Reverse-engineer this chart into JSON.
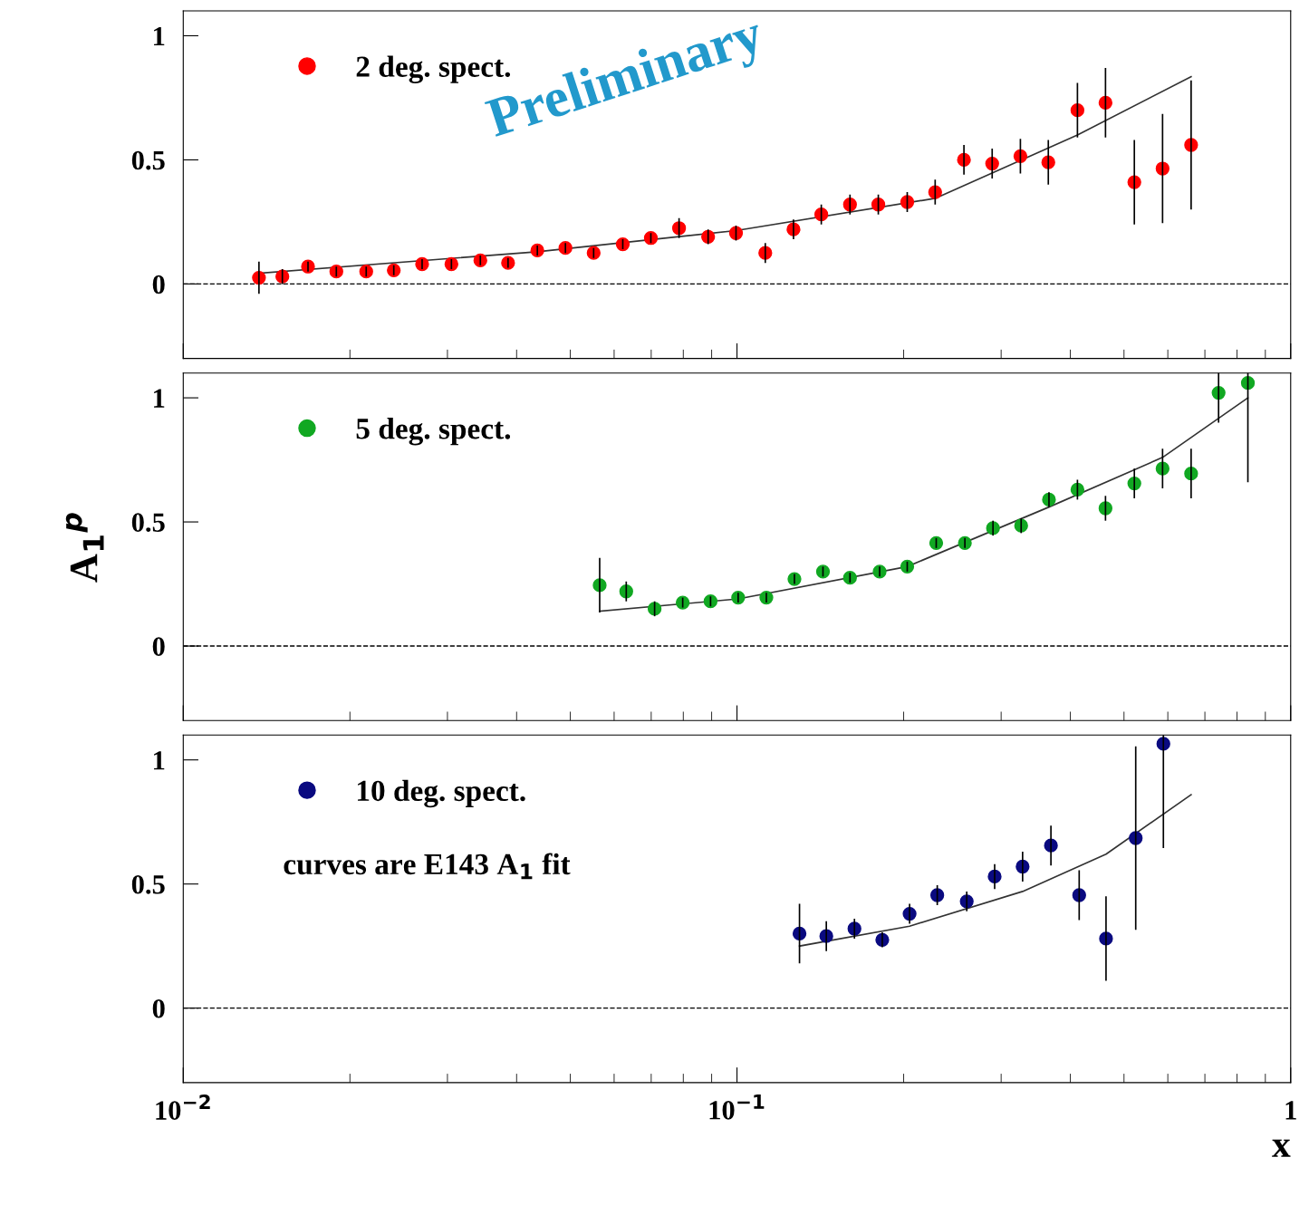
{
  "chart_data": [
    {
      "type": "scatter",
      "annotations": [
        "Preliminary"
      ],
      "legend": "top left",
      "marker": "circle",
      "tick_labels": "y",
      "grid": false,
      "log": "x",
      "xlim": [
        0.01,
        1
      ],
      "ylim": [
        -0.3,
        1.1
      ],
      "yticks": [
        0,
        0.5,
        1
      ],
      "ref_lines": [
        {
          "axis": "y",
          "value": 0,
          "line_style": "dashed",
          "color": "#000000"
        }
      ],
      "x": [
        0.0137,
        0.0151,
        0.0168,
        0.0189,
        0.0214,
        0.024,
        0.027,
        0.0305,
        0.0344,
        0.0386,
        0.0436,
        0.049,
        0.0551,
        0.0622,
        0.0699,
        0.0786,
        0.0887,
        0.0996,
        0.1125,
        0.1265,
        0.142,
        0.16,
        0.18,
        0.203,
        0.228,
        0.257,
        0.289,
        0.325,
        0.365,
        0.412,
        0.463,
        0.522,
        0.587,
        0.661
      ],
      "series": [
        {
          "name": "2 deg. spect.",
          "color": "#ff0000",
          "values": [
            0.025,
            0.03,
            0.07,
            0.05,
            0.05,
            0.055,
            0.08,
            0.08,
            0.095,
            0.085,
            0.135,
            0.145,
            0.125,
            0.16,
            0.185,
            0.225,
            0.19,
            0.205,
            0.125,
            0.22,
            0.28,
            0.32,
            0.32,
            0.33,
            0.37,
            0.5,
            0.485,
            0.515,
            0.49,
            0.7,
            0.73,
            0.41,
            0.465,
            0.56
          ],
          "errors": [
            0.065,
            0.03,
            0.02,
            0.02,
            0.02,
            0.02,
            0.02,
            0.02,
            0.02,
            0.02,
            0.02,
            0.02,
            0.02,
            0.02,
            0.02,
            0.04,
            0.03,
            0.03,
            0.04,
            0.04,
            0.04,
            0.04,
            0.04,
            0.04,
            0.05,
            0.06,
            0.06,
            0.07,
            0.09,
            0.11,
            0.14,
            0.17,
            0.22,
            0.26
          ]
        },
        {
          "type": "line",
          "marker": "none",
          "color": "#333333",
          "x": [
            0.0137,
            0.0436,
            0.0996,
            0.228,
            0.412,
            0.661
          ],
          "values": [
            0.043,
            0.13,
            0.215,
            0.345,
            0.6,
            0.835
          ]
        }
      ]
    },
    {
      "type": "scatter",
      "ylabel": "A$_{1}$$^{p}$",
      "legend": "top left",
      "marker": "circle",
      "tick_labels": "y",
      "grid": false,
      "log": "x",
      "xlim": [
        0.01,
        1
      ],
      "ylim": [
        -0.3,
        1.1
      ],
      "yticks": [
        0,
        0.5,
        1
      ],
      "ref_lines": [
        {
          "axis": "y",
          "value": 0,
          "line_style": "dashed",
          "color": "#000000"
        }
      ],
      "x": [
        0.0565,
        0.0631,
        0.071,
        0.0798,
        0.0896,
        0.1005,
        0.113,
        0.127,
        0.143,
        0.16,
        0.181,
        0.203,
        0.229,
        0.258,
        0.29,
        0.326,
        0.366,
        0.412,
        0.463,
        0.522,
        0.587,
        0.661,
        0.741,
        0.837
      ],
      "series": [
        {
          "name": "5 deg. spect.",
          "color": "#11a822",
          "values": [
            0.245,
            0.22,
            0.15,
            0.175,
            0.18,
            0.195,
            0.195,
            0.27,
            0.3,
            0.275,
            0.3,
            0.32,
            0.415,
            0.415,
            0.475,
            0.485,
            0.59,
            0.63,
            0.555,
            0.655,
            0.715,
            0.695,
            1.02,
            1.06
          ],
          "errors": [
            0.11,
            0.04,
            0.03,
            0.02,
            0.02,
            0.02,
            0.02,
            0.02,
            0.02,
            0.02,
            0.02,
            0.02,
            0.02,
            0.02,
            0.03,
            0.03,
            0.03,
            0.04,
            0.05,
            0.06,
            0.08,
            0.1,
            0.12,
            0.4
          ]
        },
        {
          "type": "line",
          "marker": "none",
          "color": "#333333",
          "x": [
            0.0565,
            0.1005,
            0.203,
            0.366,
            0.587,
            0.837
          ],
          "values": [
            0.14,
            0.19,
            0.32,
            0.56,
            0.76,
            1.0
          ]
        }
      ]
    },
    {
      "type": "scatter",
      "xlabel": "x",
      "annotations": [
        "curves are E143 A$_{1}$ fit"
      ],
      "legend": "top left",
      "marker": "circle",
      "grid": false,
      "log": "x",
      "xlim": [
        0.01,
        1
      ],
      "xticks": [
        {
          "value": 0.01,
          "label": "10$^{−2}$"
        },
        {
          "value": 0.1,
          "label": "10$^{−1}$"
        },
        1
      ],
      "ylim": [
        -0.3,
        1.1
      ],
      "yticks": [
        0,
        0.5,
        1
      ],
      "ref_lines": [
        {
          "axis": "y",
          "value": 0,
          "line_style": "dashed",
          "color": "#000000"
        }
      ],
      "x": [
        0.1297,
        0.145,
        0.163,
        0.183,
        0.205,
        0.23,
        0.26,
        0.292,
        0.328,
        0.369,
        0.415,
        0.464,
        0.525,
        0.589
      ],
      "series": [
        {
          "name": "10 deg. spect.",
          "color": "#0a0a80",
          "values": [
            0.3,
            0.29,
            0.32,
            0.275,
            0.38,
            0.455,
            0.43,
            0.53,
            0.57,
            0.655,
            0.455,
            0.28,
            0.685,
            1.065
          ],
          "errors": [
            0.12,
            0.06,
            0.04,
            0.03,
            0.04,
            0.04,
            0.04,
            0.05,
            0.06,
            0.08,
            0.1,
            0.17,
            0.37,
            0.42
          ]
        },
        {
          "type": "line",
          "marker": "none",
          "color": "#333333",
          "x": [
            0.1297,
            0.205,
            0.328,
            0.464,
            0.661
          ],
          "values": [
            0.25,
            0.33,
            0.47,
            0.62,
            0.86
          ]
        }
      ]
    }
  ]
}
